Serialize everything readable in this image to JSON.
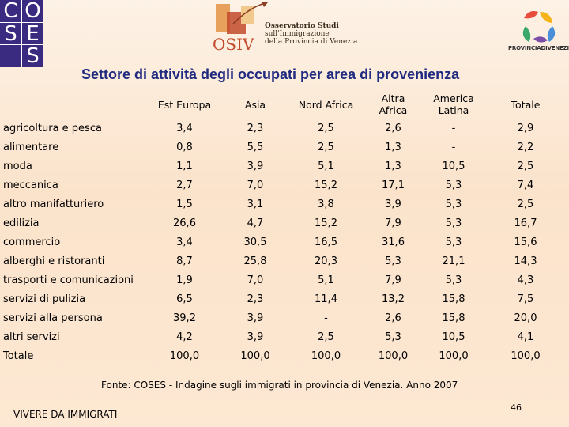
{
  "header": {
    "coses_letters": [
      "C",
      "O",
      "S",
      "E",
      "S"
    ],
    "osiv_lines": [
      "Osservatorio Studi",
      "sull'Immigrazione",
      "della Provincia di Venezia"
    ],
    "osiv_brand": "OSIV",
    "provincia_text": "PROVINCIADIVENEZIA"
  },
  "title": "Settore di attività degli occupati per area di provenienza",
  "table": {
    "columns": [
      "Est Europa",
      "Asia",
      "Nord Africa",
      "Altra Africa",
      "America Latina",
      "Totale"
    ],
    "rows": [
      {
        "label": "agricoltura e pesca",
        "values": [
          "3,4",
          "2,3",
          "2,5",
          "2,6",
          "-",
          "2,9"
        ]
      },
      {
        "label": "alimentare",
        "values": [
          "0,8",
          "5,5",
          "2,5",
          "1,3",
          "-",
          "2,2"
        ]
      },
      {
        "label": "moda",
        "values": [
          "1,1",
          "3,9",
          "5,1",
          "1,3",
          "10,5",
          "2,5"
        ]
      },
      {
        "label": "meccanica",
        "values": [
          "2,7",
          "7,0",
          "15,2",
          "17,1",
          "5,3",
          "7,4"
        ]
      },
      {
        "label": "altro manifatturiero",
        "values": [
          "1,5",
          "3,1",
          "3,8",
          "3,9",
          "5,3",
          "2,5"
        ]
      },
      {
        "label": "edilizia",
        "values": [
          "26,6",
          "4,7",
          "15,2",
          "7,9",
          "5,3",
          "16,7"
        ]
      },
      {
        "label": "commercio",
        "values": [
          "3,4",
          "30,5",
          "16,5",
          "31,6",
          "5,3",
          "15,6"
        ]
      },
      {
        "label": "alberghi e ristoranti",
        "values": [
          "8,7",
          "25,8",
          "20,3",
          "5,3",
          "21,1",
          "14,3"
        ]
      },
      {
        "label": "trasporti e comunicazioni",
        "values": [
          "1,9",
          "7,0",
          "5,1",
          "7,9",
          "5,3",
          "4,3"
        ]
      },
      {
        "label": "servizi di pulizia",
        "values": [
          "6,5",
          "2,3",
          "11,4",
          "13,2",
          "15,8",
          "7,5"
        ]
      },
      {
        "label": "servizi alla persona",
        "values": [
          "39,2",
          "3,9",
          "-",
          "2,6",
          "15,8",
          "20,0"
        ]
      },
      {
        "label": "altri servizi",
        "values": [
          "4,2",
          "3,9",
          "2,5",
          "5,3",
          "10,5",
          "4,1"
        ]
      },
      {
        "label": "Totale",
        "values": [
          "100,0",
          "100,0",
          "100,0",
          "100,0",
          "100,0",
          "100,0"
        ]
      }
    ]
  },
  "source": "Fonte: COSES - Indagine sugli immigrati in provincia di Venezia. Anno 2007",
  "footer": {
    "left": "VIVERE DA IMMIGRATI",
    "page": "46"
  }
}
